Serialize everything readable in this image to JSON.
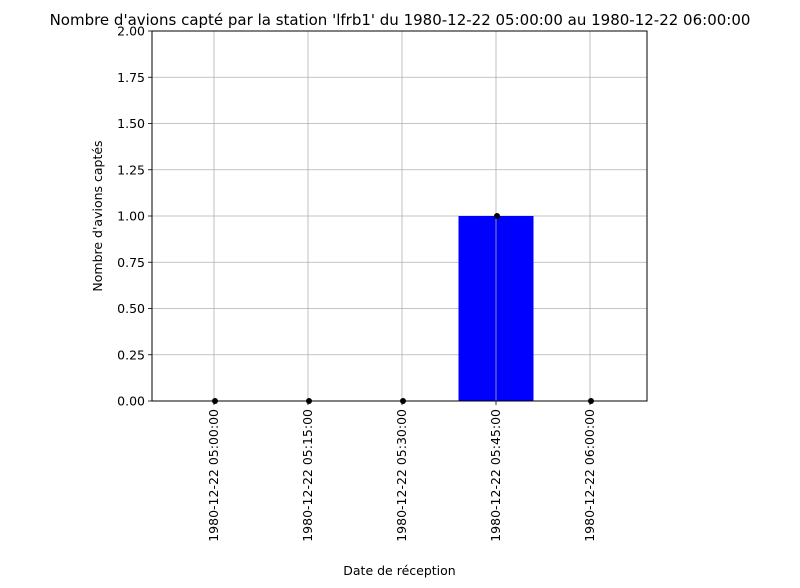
{
  "chart_data": {
    "type": "bar",
    "title": "Nombre d'avions capté par la station 'lfrb1' du 1980-12-22 05:00:00 au 1980-12-22 06:00:00",
    "xlabel": "Date de réception",
    "ylabel": "Nombre d'avions captés",
    "categories": [
      "1980-12-22 05:00:00",
      "1980-12-22 05:15:00",
      "1980-12-22 05:30:00",
      "1980-12-22 05:45:00",
      "1980-12-22 06:00:00"
    ],
    "values": [
      0,
      0,
      0,
      1,
      0
    ],
    "ylim": [
      0,
      2
    ],
    "yticks": [
      "0.00",
      "0.25",
      "0.50",
      "0.75",
      "1.00",
      "1.25",
      "1.50",
      "1.75",
      "2.00"
    ],
    "grid": true,
    "bar_color": "#0000ff",
    "marker_color": "#000000",
    "grid_color": "#b0b0b0"
  }
}
